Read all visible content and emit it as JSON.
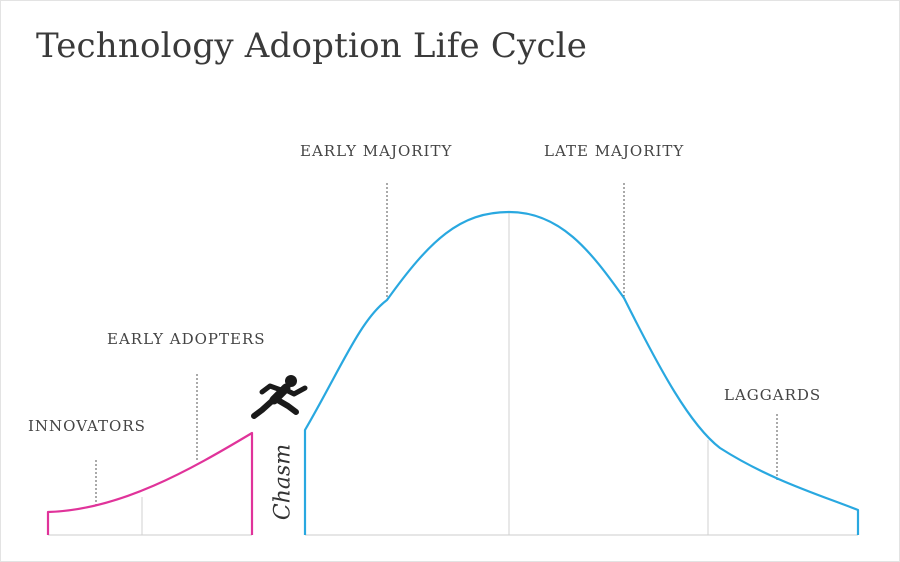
{
  "title": "Technology Adoption Life Cycle",
  "segments": {
    "innovators": "INNOVATORS",
    "early_adopters": "EARLY ADOPTERS",
    "early_majority": "EARLY MAJORITY",
    "late_majority": "LATE MAJORITY",
    "laggards": "LAGGARDS"
  },
  "chasm_label": "Chasm",
  "colors": {
    "early_curve": "#e0339a",
    "main_curve": "#29a8e0",
    "baseline": "#dddddd",
    "divider": "#d0d0d0",
    "leader": "#555555",
    "jumper": "#1a1a1a"
  },
  "icons": [
    "jumping-person-icon"
  ]
}
